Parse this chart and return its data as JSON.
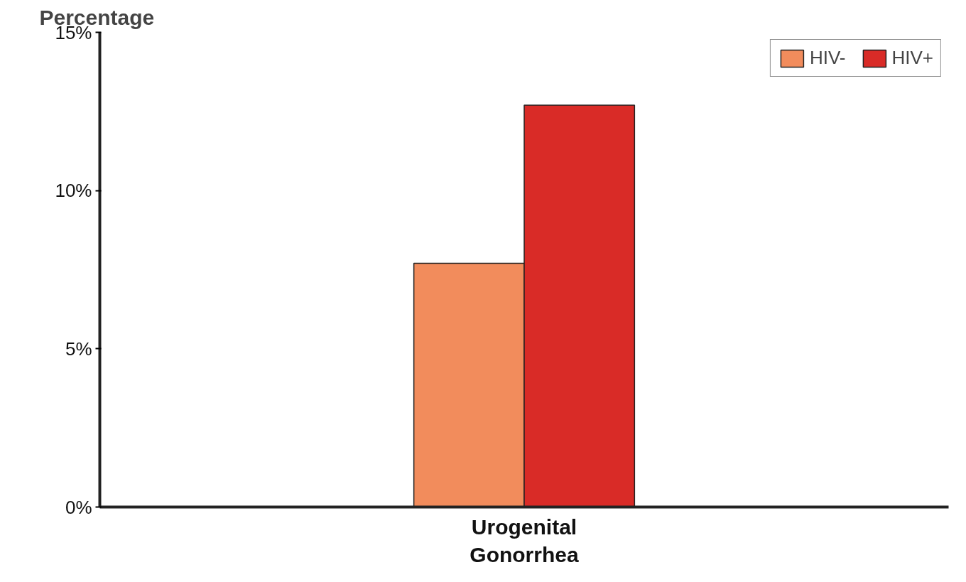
{
  "chart_data": {
    "type": "bar",
    "ylabel": "Percentage",
    "categories": [
      "Urogenital Gonorrhea"
    ],
    "series": [
      {
        "name": "HIV-",
        "color": "#f28c5c",
        "values": [
          7.7
        ]
      },
      {
        "name": "HIV+",
        "color": "#d92b27",
        "values": [
          12.7
        ]
      }
    ],
    "ylim": [
      0,
      15
    ],
    "yticks": [
      {
        "value": 0,
        "label": "0%"
      },
      {
        "value": 5,
        "label": "5%"
      },
      {
        "value": 10,
        "label": "10%"
      },
      {
        "value": 15,
        "label": "15%"
      }
    ],
    "grid": false,
    "legend": "top right"
  }
}
